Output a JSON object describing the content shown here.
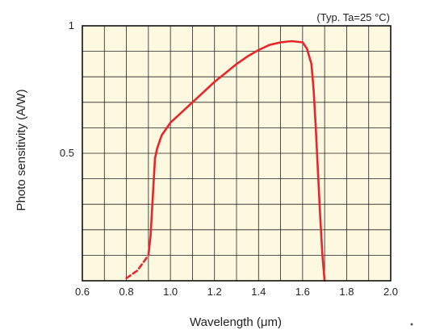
{
  "chart_data": {
    "type": "line",
    "note": "(Typ. Ta=25 °C)",
    "xlabel": "Wavelength (μm)",
    "ylabel": "Photo sensitivity (A/W)",
    "xlim": [
      0.6,
      2.0
    ],
    "ylim": [
      0.0,
      1.0
    ],
    "x_ticks": [
      "0.6",
      "0.8",
      "1.0",
      "1.2",
      "1.4",
      "1.6",
      "1.8",
      "2.0"
    ],
    "y_ticks": [
      {
        "label": "0.5",
        "value": 0.5
      },
      {
        "label": "1",
        "value": 1.0
      }
    ],
    "grid": true,
    "grid_x_step": 0.1,
    "grid_y_step": 0.1,
    "plot_background": "#fdf9e0",
    "grid_color": "#222222",
    "series": [
      {
        "style": "dashed",
        "color": "#e8252a",
        "x": [
          0.8,
          0.85,
          0.9
        ],
        "y": [
          0.01,
          0.04,
          0.1
        ]
      },
      {
        "style": "solid",
        "color": "#e8252a",
        "x": [
          0.9,
          0.91,
          0.92,
          0.93,
          0.94,
          0.96,
          1.0,
          1.05,
          1.1,
          1.15,
          1.2,
          1.25,
          1.3,
          1.35,
          1.4,
          1.45,
          1.5,
          1.55,
          1.6,
          1.62,
          1.64,
          1.65,
          1.66,
          1.67,
          1.68,
          1.69,
          1.7
        ],
        "y": [
          0.1,
          0.18,
          0.33,
          0.48,
          0.52,
          0.57,
          0.62,
          0.66,
          0.7,
          0.74,
          0.78,
          0.815,
          0.85,
          0.88,
          0.905,
          0.925,
          0.935,
          0.94,
          0.935,
          0.91,
          0.85,
          0.75,
          0.6,
          0.42,
          0.25,
          0.1,
          0.0
        ]
      }
    ]
  }
}
